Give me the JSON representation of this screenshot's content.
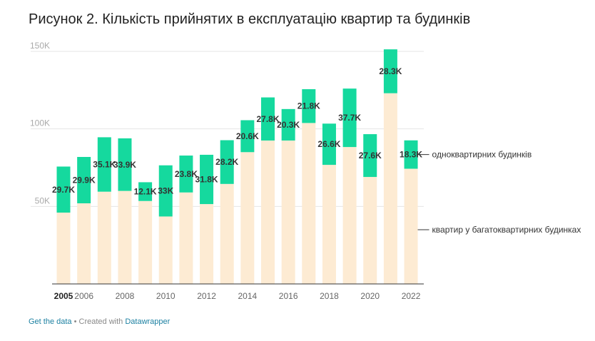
{
  "title": "Рисунок 2. Кількість прийнятих в експлуатацію квартир та будинків",
  "footer": {
    "get_data": "Get the data",
    "separator": " • Created with ",
    "tool": "Datawrapper"
  },
  "colors": {
    "apartments": "#fdebd3",
    "houses": "#15d99e",
    "grid": "#e5e5e5",
    "axis": "#333333"
  },
  "chart_data": {
    "type": "bar",
    "stacked": true,
    "categories": [
      "2005",
      "2006",
      "2007",
      "2008",
      "2009",
      "2010",
      "2011",
      "2012",
      "2013",
      "2014",
      "2015",
      "2016",
      "2017",
      "2018",
      "2019",
      "2020",
      "2021",
      "2022"
    ],
    "tick_labels": [
      "2005",
      "2006",
      "2008",
      "2010",
      "2012",
      "2014",
      "2016",
      "2018",
      "2020",
      "2022"
    ],
    "y_ticks": [
      50000,
      100000,
      150000
    ],
    "y_tick_labels": [
      "50K",
      "100K",
      "150K"
    ],
    "ylim": [
      0,
      150000
    ],
    "grid": true,
    "series": [
      {
        "name": "квартир у багатоквартирних будинках",
        "values": [
          46000,
          52000,
          59500,
          60000,
          53500,
          43500,
          59000,
          51500,
          64500,
          85000,
          92500,
          92500,
          103800,
          76800,
          88300,
          69000,
          123000,
          74300
        ]
      },
      {
        "name": "одноквартирних будинків",
        "values": [
          29700,
          29900,
          35100,
          33900,
          12100,
          33000,
          23800,
          31800,
          28200,
          20600,
          27800,
          20300,
          21800,
          26600,
          37700,
          27600,
          28300,
          18300
        ],
        "labels": [
          "29.7K",
          "29.9K",
          "35.1K",
          "33.9K",
          "12.1K",
          "33K",
          "23.8K",
          "31.8K",
          "28.2K",
          "20.6K",
          "27.8K",
          "20.3K",
          "21.8K",
          "26.6K",
          "37.7K",
          "27.6K",
          "28.3K",
          "18.3K"
        ]
      }
    ]
  }
}
